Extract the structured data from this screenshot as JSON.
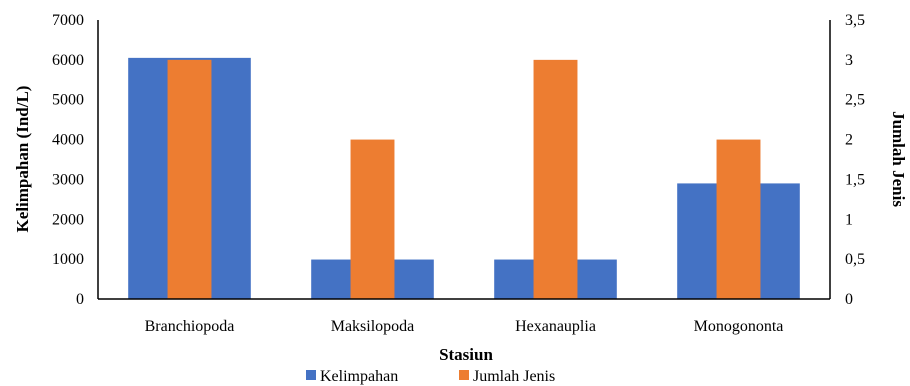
{
  "chart_data": {
    "type": "bar",
    "categories": [
      "Branchiopoda",
      "Maksilopoda",
      "Hexanauplia",
      "Monogononta"
    ],
    "series": [
      {
        "name": "Kelimpahan",
        "axis": "left",
        "color": "#4472C4",
        "values": [
          6050,
          990,
          990,
          2900
        ]
      },
      {
        "name": "Jumlah Jenis",
        "axis": "right",
        "color": "#ED7D31",
        "values": [
          3,
          2,
          3,
          2
        ]
      }
    ],
    "xlabel": "Stasiun",
    "ylabel": "Kelimpahan (Ind/L)",
    "y2label": "Jumlah Jenis",
    "ylim": [
      0,
      7000
    ],
    "y2lim": [
      0,
      3.5
    ],
    "yticks": [
      "0",
      "1000",
      "2000",
      "3000",
      "4000",
      "5000",
      "6000",
      "7000"
    ],
    "y2ticks": [
      "0",
      "0,5",
      "1",
      "1,5",
      "2",
      "2,5",
      "3",
      "3,5"
    ],
    "grid": false,
    "legend_position": "bottom"
  }
}
